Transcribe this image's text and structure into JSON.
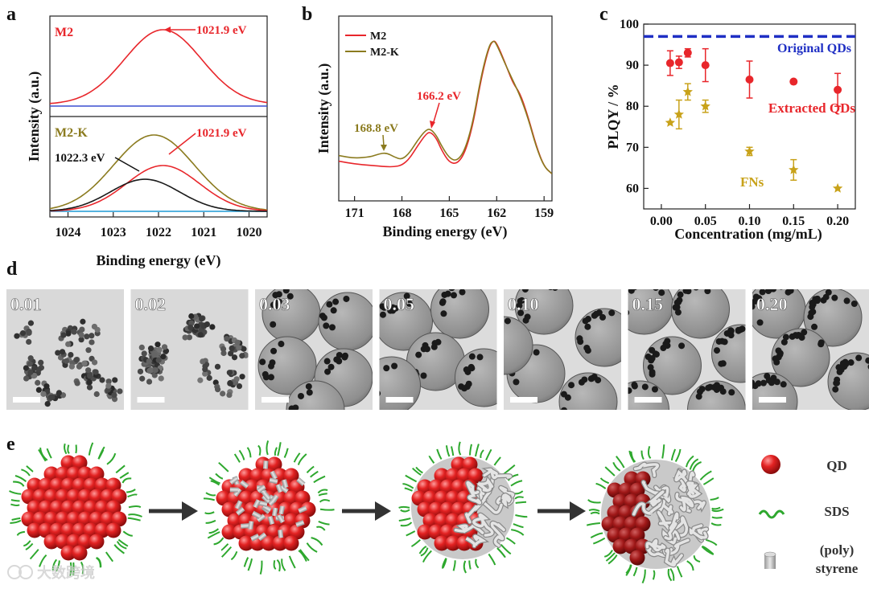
{
  "panel_letters": {
    "a": "a",
    "b": "b",
    "c": "c",
    "d": "d",
    "e": "e"
  },
  "colors": {
    "red": "#e8262b",
    "olive": "#8b7b1f",
    "black": "#1a1a1a",
    "blue": "#1f2fc4",
    "gold": "#c8a21a",
    "baseline_blue": "#3a4fd0"
  },
  "chart_data": [
    {
      "id": "a",
      "type": "line",
      "xlabel": "Binding energy (eV)",
      "ylabel": "Intensity (a.u.)",
      "xlim": [
        1024.4,
        1019.6
      ],
      "xticks": [
        "1024",
        "1023",
        "1022",
        "1021",
        "1020"
      ],
      "top": {
        "sample": "M2",
        "annotation": "1021.9 eV",
        "series": [
          {
            "name": "M2 fit",
            "center": 1021.9,
            "fwhm": 2.0,
            "amplitude": 1.0
          }
        ]
      },
      "bottom": {
        "sample": "M2-K",
        "annotations": [
          "1021.9 eV",
          "1022.3 eV"
        ],
        "series": [
          {
            "name": "M2-K envelope",
            "center": 1022.1,
            "fwhm": 2.1,
            "amplitude": 1.0
          },
          {
            "name": "1021.9 eV component",
            "center": 1021.9,
            "fwhm": 1.9,
            "amplitude": 0.6
          },
          {
            "name": "1022.3 eV component",
            "center": 1022.3,
            "fwhm": 1.8,
            "amplitude": 0.42
          }
        ]
      }
    },
    {
      "id": "b",
      "type": "line",
      "xlabel": "Binding energy (eV)",
      "ylabel": "Intensity (a.u.)",
      "xlim": [
        172,
        158.5
      ],
      "xticks": [
        "171",
        "168",
        "165",
        "162",
        "159"
      ],
      "legend": [
        "M2",
        "M2-K"
      ],
      "annotations": [
        {
          "text": "166.2 eV",
          "x": 166.2
        },
        {
          "text": "168.8 eV",
          "x": 168.8
        }
      ],
      "series": [
        {
          "name": "M2",
          "x": [
            172,
            171,
            170,
            169.5,
            169,
            168.5,
            168,
            167.5,
            167,
            166.5,
            166.2,
            165.8,
            165.5,
            165,
            164.5,
            164,
            163.5,
            163,
            162.5,
            162.2,
            162,
            161.5,
            161,
            160.5,
            160,
            159.5,
            159,
            158.5
          ],
          "y": [
            0.14,
            0.12,
            0.11,
            0.105,
            0.1,
            0.1,
            0.11,
            0.16,
            0.25,
            0.33,
            0.35,
            0.3,
            0.22,
            0.13,
            0.12,
            0.2,
            0.4,
            0.72,
            0.95,
            1.0,
            0.98,
            0.85,
            0.7,
            0.62,
            0.45,
            0.25,
            0.1,
            0.05
          ]
        },
        {
          "name": "M2-K",
          "x": [
            172,
            171,
            170,
            169.5,
            169,
            168.5,
            168,
            167.5,
            167,
            166.5,
            166.2,
            165.8,
            165.5,
            165,
            164.5,
            164,
            163.5,
            163,
            162.5,
            162.2,
            162,
            161.5,
            161,
            160.5,
            160,
            159.5,
            159,
            158.5
          ],
          "y": [
            0.18,
            0.16,
            0.17,
            0.19,
            0.2,
            0.17,
            0.15,
            0.2,
            0.29,
            0.36,
            0.37,
            0.32,
            0.25,
            0.16,
            0.14,
            0.22,
            0.42,
            0.74,
            0.96,
            1.0,
            0.97,
            0.84,
            0.72,
            0.6,
            0.44,
            0.24,
            0.1,
            0.05
          ]
        }
      ]
    },
    {
      "id": "c",
      "type": "scatter",
      "xlabel": "Concentration (mg/mL)",
      "ylabel": "PLQY / %",
      "xlim": [
        -0.02,
        0.22
      ],
      "ylim": [
        55,
        100
      ],
      "xticks": [
        0.0,
        0.05,
        0.1,
        0.15,
        0.2
      ],
      "xtick_labels": [
        "0.00",
        "0.05",
        "0.10",
        "0.15",
        "0.20"
      ],
      "yticks": [
        60,
        70,
        80,
        90,
        100
      ],
      "reference": {
        "name": "Original QDs",
        "value": 97
      },
      "series": [
        {
          "name": "Extracted QDs",
          "marker": "circle",
          "x": [
            0.01,
            0.02,
            0.03,
            0.05,
            0.1,
            0.15,
            0.2
          ],
          "y": [
            90.5,
            90.7,
            93.0,
            90.0,
            86.5,
            86.0,
            84.0
          ],
          "err": [
            3.0,
            1.5,
            1.0,
            4.0,
            4.5,
            0,
            4.0
          ]
        },
        {
          "name": "FNs",
          "marker": "star",
          "x": [
            0.01,
            0.02,
            0.03,
            0.05,
            0.1,
            0.15,
            0.2
          ],
          "y": [
            76.0,
            78.0,
            83.5,
            80.0,
            69.0,
            64.5,
            60.0
          ],
          "err": [
            0,
            3.5,
            2.0,
            1.5,
            1.0,
            2.5,
            0
          ]
        }
      ]
    }
  ],
  "panel_d": {
    "tiles": [
      {
        "label": "0.01"
      },
      {
        "label": "0.02"
      },
      {
        "label": "0.03"
      },
      {
        "label": "0.05"
      },
      {
        "label": "0.10"
      },
      {
        "label": "0.15"
      },
      {
        "label": "0.20"
      }
    ]
  },
  "panel_e": {
    "legend": {
      "qd": "QD",
      "sds": "SDS",
      "poly": "(poly)",
      "styrene": "styrene"
    }
  },
  "watermark": "大数跨境"
}
